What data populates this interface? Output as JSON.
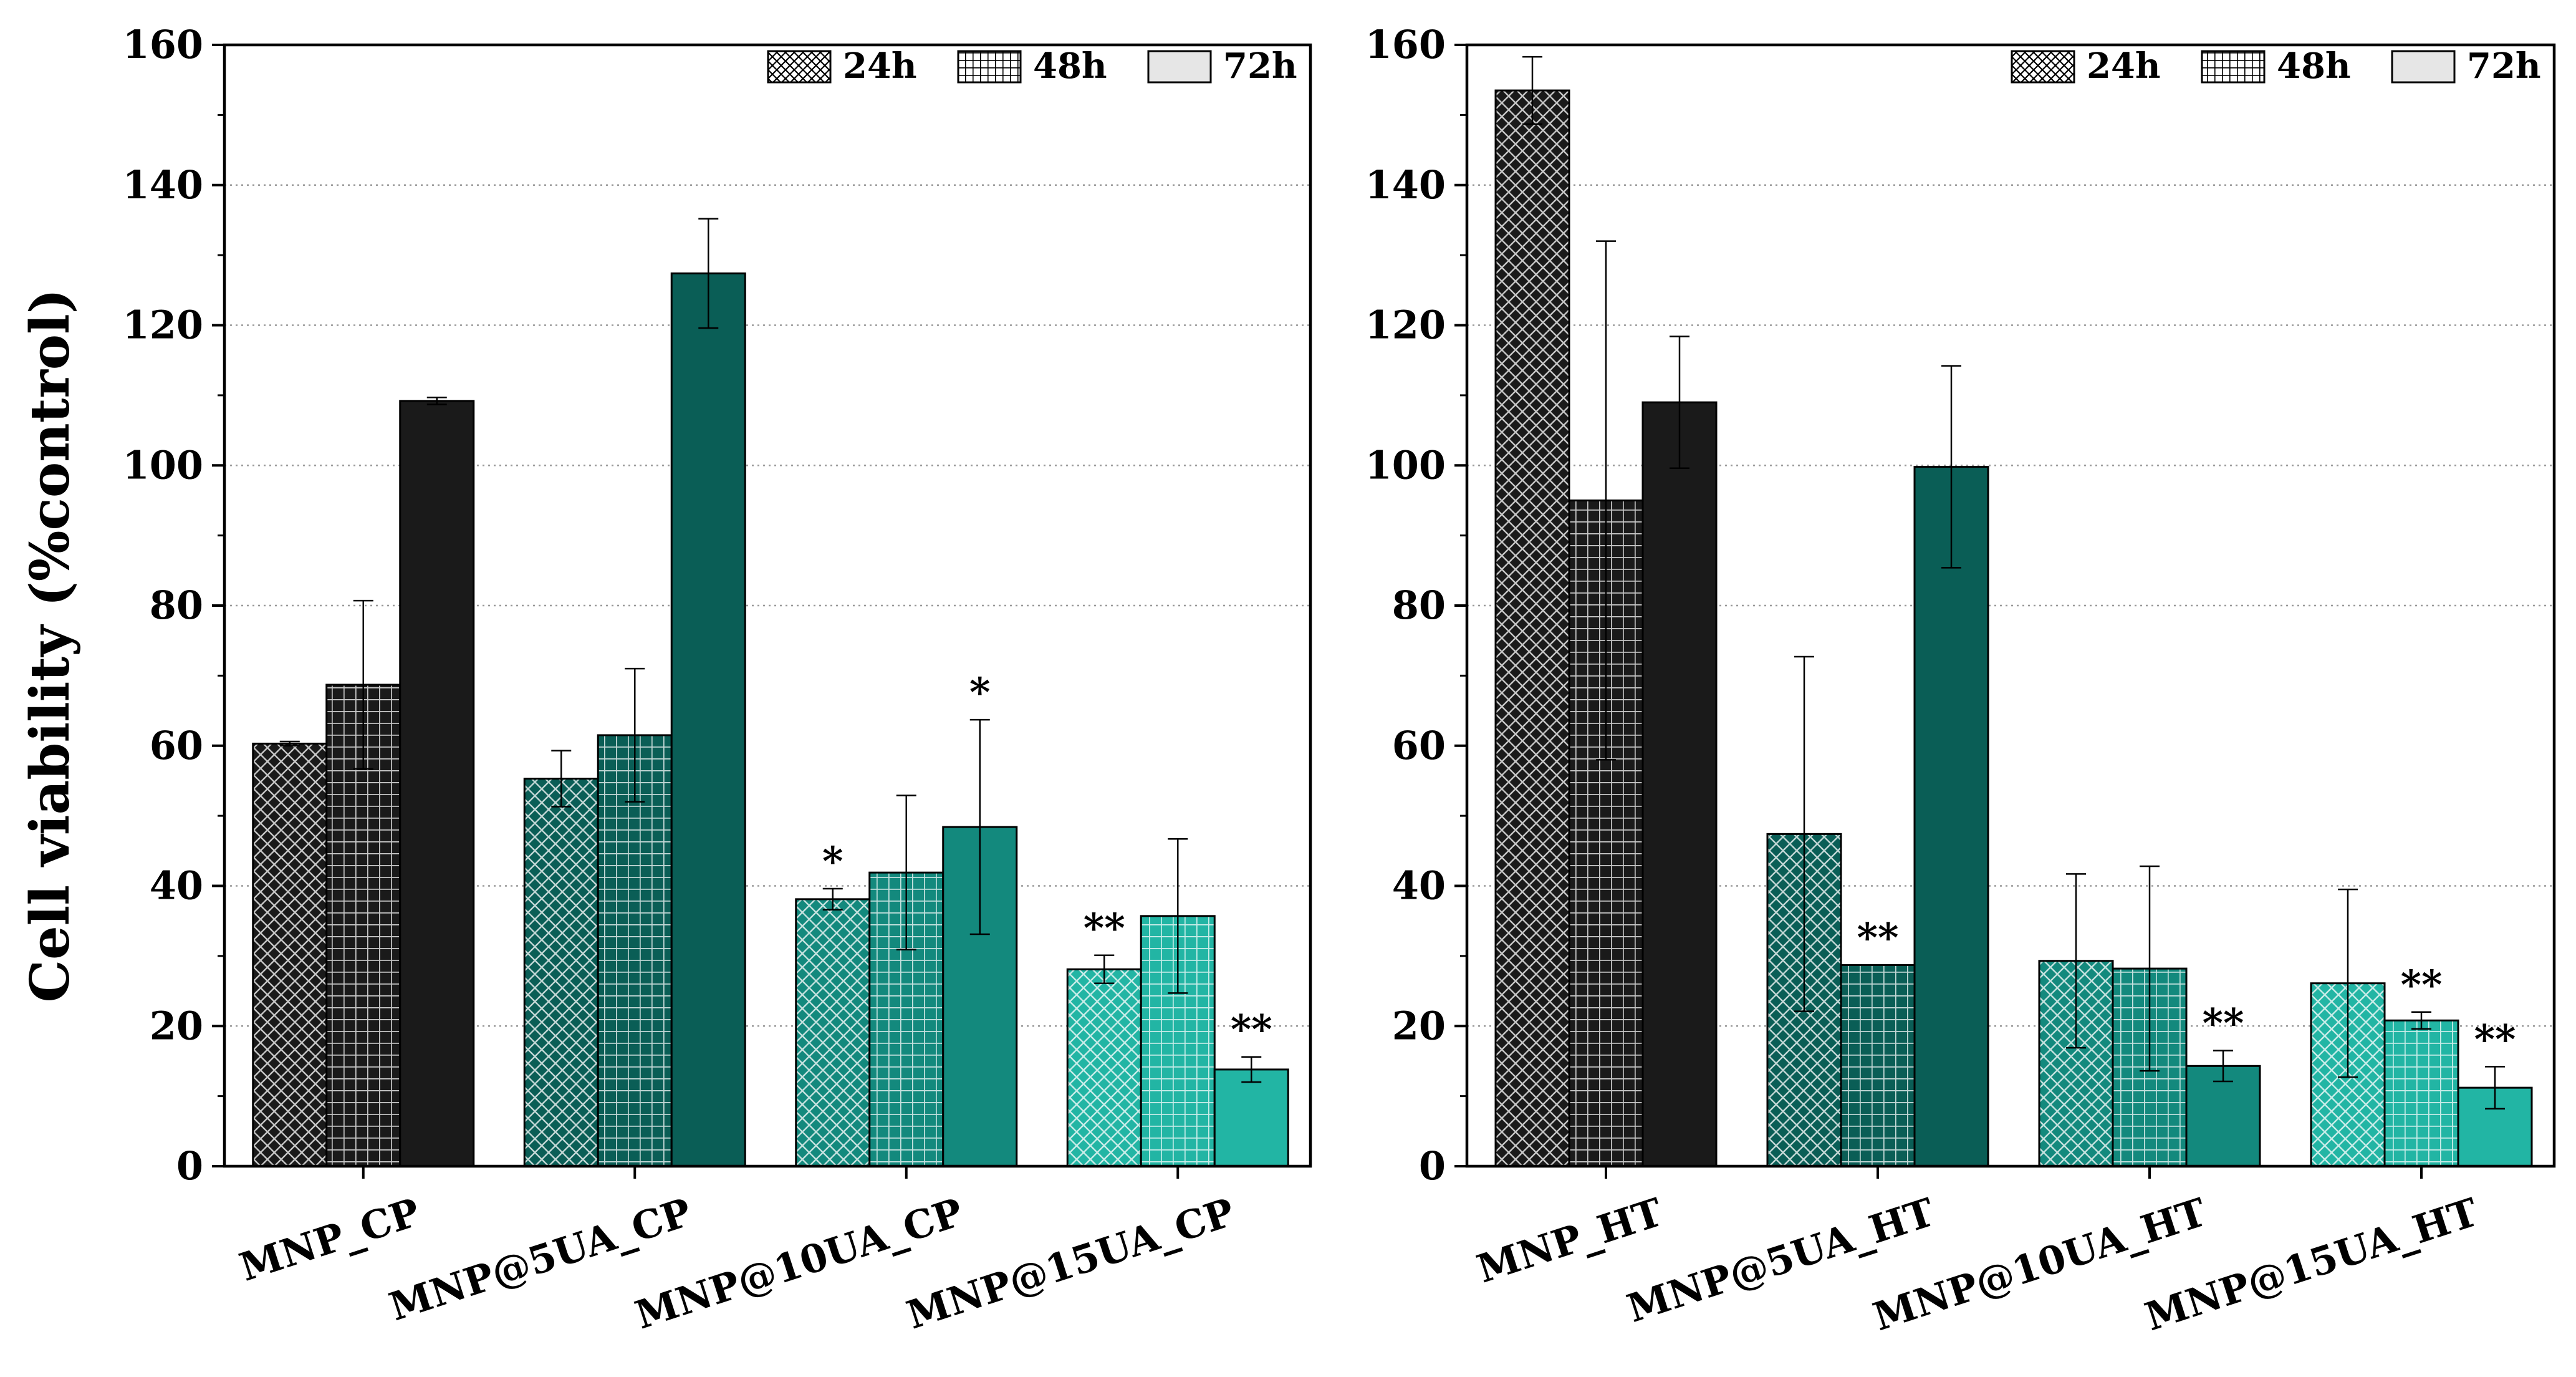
{
  "chart_data": [
    {
      "type": "bar",
      "panel": "left",
      "ylabel": "Cell viability (%control)",
      "ylim": [
        0,
        160
      ],
      "yticks": [
        "0",
        "20",
        "40",
        "60",
        "80",
        "100",
        "120",
        "140",
        "160"
      ],
      "grid": "horizontal dotted at 20, 40, 80, 100, 120, 140",
      "legend_position": "top-right",
      "categories": [
        "MNP_CP",
        "MNP@5UA_CP",
        "MNP@10UA_CP",
        "MNP@15UA_CP"
      ],
      "series": [
        {
          "name": "24h",
          "values": [
            60.3,
            55.3,
            38.1,
            28.1
          ],
          "errors": [
            0.3,
            4.0,
            1.5,
            2.0
          ],
          "annotations": [
            "",
            "",
            "*",
            "**"
          ]
        },
        {
          "name": "48h",
          "values": [
            68.7,
            61.5,
            41.9,
            35.7
          ],
          "errors": [
            12.0,
            9.5,
            11.0,
            11.0
          ],
          "annotations": [
            "",
            "",
            "",
            ""
          ]
        },
        {
          "name": "72h",
          "values": [
            109.2,
            127.4,
            48.4,
            13.8
          ],
          "errors": [
            0.5,
            7.8,
            15.3,
            1.8
          ],
          "annotations": [
            "",
            "",
            "*",
            "**"
          ]
        }
      ]
    },
    {
      "type": "bar",
      "panel": "right",
      "ylim": [
        0,
        160
      ],
      "yticks": [
        "0",
        "20",
        "40",
        "60",
        "80",
        "100",
        "120",
        "140",
        "160"
      ],
      "grid": "horizontal dotted at 20, 40, 80, 100, 120, 140",
      "legend_position": "top-right",
      "categories": [
        "MNP_HT",
        "MNP@5UA_HT",
        "MNP@10UA_HT",
        "MNP@15UA_HT"
      ],
      "series": [
        {
          "name": "24h",
          "values": [
            153.5,
            47.4,
            29.3,
            26.1
          ],
          "errors": [
            4.8,
            25.3,
            12.4,
            13.4
          ],
          "annotations": [
            "",
            "",
            "",
            ""
          ]
        },
        {
          "name": "48h",
          "values": [
            95.0,
            28.7,
            28.2,
            20.8
          ],
          "errors": [
            37.0,
            0.0,
            14.6,
            1.2
          ],
          "annotations": [
            "",
            "**",
            "",
            "**"
          ]
        },
        {
          "name": "72h",
          "values": [
            109.0,
            99.8,
            14.3,
            11.2
          ],
          "errors": [
            9.4,
            14.4,
            2.2,
            3.0
          ],
          "annotations": [
            "",
            "",
            "**",
            "**"
          ]
        }
      ]
    }
  ],
  "colors": {
    "group_fills": [
      "#1a1a1a",
      "#0a5e56",
      "#13897d",
      "#22b5a4"
    ],
    "axis": "#000000",
    "grid": "#9a9a9a"
  }
}
